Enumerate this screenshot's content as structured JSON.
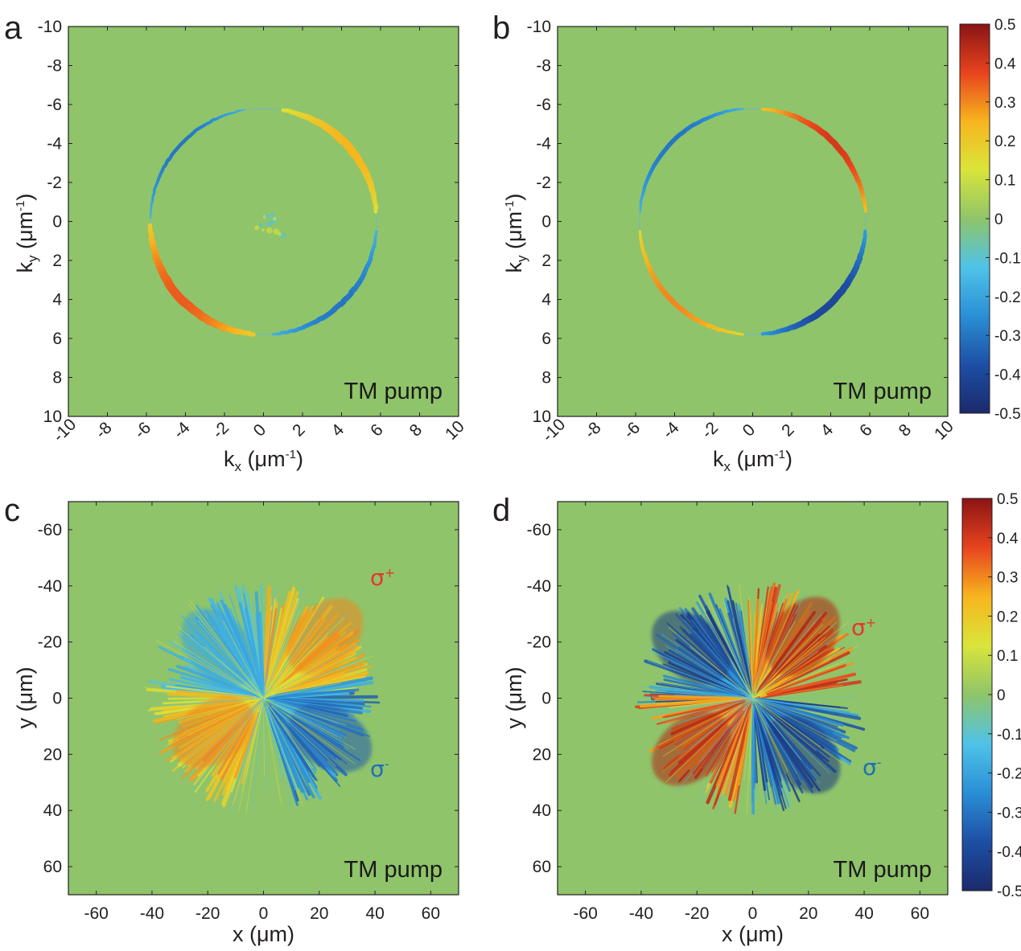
{
  "colors": {
    "background_map": "#8fc46a",
    "positive": "#c1272d",
    "negative": "#1c3f95",
    "sigma_plus": "#e03a2f",
    "sigma_minus": "#1f6fb8",
    "colormap": [
      "#1b2a6b",
      "#1d4fa5",
      "#2a8fd6",
      "#4fc3e8",
      "#8fc46a",
      "#d9e53a",
      "#f7b51e",
      "#e8431e",
      "#8a1414"
    ]
  },
  "chart_data": [
    {
      "panel": "a",
      "type": "heatmap",
      "x_label": {
        "main": "k",
        "sub": "x",
        "unit": " (μm",
        "sup": "-1",
        "close": ")"
      },
      "y_label": {
        "main": "k",
        "sub": "y",
        "unit": " (μm",
        "sup": "-1",
        "close": ")"
      },
      "xlim": [
        -10,
        10
      ],
      "ylim": [
        -10,
        10
      ],
      "y_reversed": true,
      "x_ticks": [
        "-10",
        "-8",
        "-6",
        "-4",
        "-2",
        "0",
        "2",
        "4",
        "6",
        "8",
        "10"
      ],
      "y_ticks": [
        "-10",
        "-8",
        "-6",
        "-4",
        "-2",
        "0",
        "2",
        "4",
        "6",
        "8",
        "10"
      ],
      "annotation": "TM  pump",
      "ring_radius": 5.8,
      "lobes": [
        {
          "from_deg": 5,
          "to_deg": 80,
          "value": 0.25
        },
        {
          "from_deg": 100,
          "to_deg": 178,
          "value": -0.3
        },
        {
          "from_deg": 182,
          "to_deg": 265,
          "value": 0.35
        },
        {
          "from_deg": 275,
          "to_deg": 355,
          "value": -0.3
        }
      ]
    },
    {
      "panel": "b",
      "type": "heatmap",
      "x_label": {
        "main": "k",
        "sub": "x",
        "unit": " (μm",
        "sup": "-1",
        "close": ")"
      },
      "y_label": {
        "main": "k",
        "sub": "y",
        "unit": " (μm",
        "sup": "-1",
        "close": ")"
      },
      "xlim": [
        -10,
        10
      ],
      "ylim": [
        -10,
        10
      ],
      "y_reversed": true,
      "x_ticks": [
        "-10",
        "-8",
        "-6",
        "-4",
        "-2",
        "0",
        "2",
        "4",
        "6",
        "8",
        "10"
      ],
      "y_ticks": [
        "-10",
        "-8",
        "-6",
        "-4",
        "-2",
        "0",
        "2",
        "4",
        "6",
        "8",
        "10"
      ],
      "annotation": "TM  pump",
      "ring_radius": 5.8,
      "lobes": [
        {
          "from_deg": 5,
          "to_deg": 85,
          "value": 0.4
        },
        {
          "from_deg": 95,
          "to_deg": 175,
          "value": -0.3
        },
        {
          "from_deg": 185,
          "to_deg": 265,
          "value": 0.3
        },
        {
          "from_deg": 275,
          "to_deg": 355,
          "value": -0.4
        }
      ],
      "colorbar": {
        "range": [
          -0.5,
          0.5
        ],
        "ticks": [
          "0.5",
          "0.4",
          "0.3",
          "0.2",
          "0.1",
          "0",
          "-0.1",
          "-0.2",
          "-0.3",
          "-0.4",
          "-0.5"
        ]
      }
    },
    {
      "panel": "c",
      "type": "heatmap",
      "x_label": {
        "main": "x (μm)"
      },
      "y_label": {
        "main": "y (μm)"
      },
      "xlim": [
        -70,
        70
      ],
      "ylim": [
        -70,
        70
      ],
      "y_reversed": true,
      "x_ticks": [
        "-60",
        "-40",
        "-20",
        "0",
        "20",
        "40",
        "60"
      ],
      "y_ticks": [
        "-60",
        "-40",
        "-20",
        "0",
        "20",
        "40",
        "60"
      ],
      "annotation": "TM  pump",
      "label_sigma_plus": {
        "base": "σ",
        "sup": "+"
      },
      "label_sigma_minus": {
        "base": "σ",
        "sup": "-"
      },
      "quadrants": [
        {
          "quadrant": "upper-right",
          "value": 0.3
        },
        {
          "quadrant": "upper-left",
          "value": -0.2
        },
        {
          "quadrant": "lower-left",
          "value": 0.3
        },
        {
          "quadrant": "lower-right",
          "value": -0.35
        }
      ]
    },
    {
      "panel": "d",
      "type": "heatmap",
      "x_label": {
        "main": "x (μm)"
      },
      "y_label": {
        "main": "y (μm)"
      },
      "xlim": [
        -70,
        70
      ],
      "ylim": [
        -70,
        70
      ],
      "y_reversed": true,
      "x_ticks": [
        "-60",
        "-40",
        "-20",
        "0",
        "20",
        "40",
        "60"
      ],
      "y_ticks": [
        "-60",
        "-40",
        "-20",
        "0",
        "20",
        "40",
        "60"
      ],
      "annotation": "TM  pump",
      "label_sigma_plus": {
        "base": "σ",
        "sup": "+"
      },
      "label_sigma_minus": {
        "base": "σ",
        "sup": "-"
      },
      "quadrants": [
        {
          "quadrant": "upper-right",
          "value": 0.45
        },
        {
          "quadrant": "upper-left",
          "value": -0.45
        },
        {
          "quadrant": "lower-left",
          "value": 0.45
        },
        {
          "quadrant": "lower-right",
          "value": -0.45
        }
      ],
      "colorbar": {
        "range": [
          -0.5,
          0.5
        ],
        "ticks": [
          "0.5",
          "0.4",
          "0.3",
          "0.2",
          "0.1",
          "0",
          "-0.1",
          "-0.2",
          "-0.3",
          "-0.4",
          "-0.5"
        ]
      }
    }
  ]
}
